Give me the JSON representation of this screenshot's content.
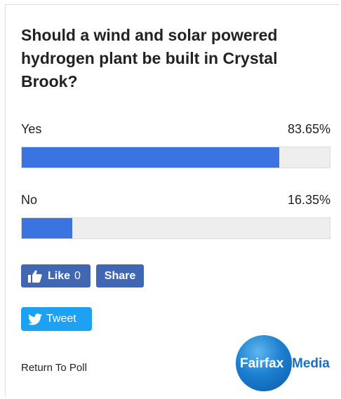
{
  "poll": {
    "question": "Should a wind and solar powered hydrogen plant be built in Crystal Brook?",
    "options": [
      {
        "label": "Yes",
        "percent_label": "83.65%",
        "percent": 83.65
      },
      {
        "label": "No",
        "percent_label": "16.35%",
        "percent": 16.35
      }
    ],
    "bar_color": "#3b73e0"
  },
  "social": {
    "like_label": "Like",
    "like_count": "0",
    "share_label": "Share",
    "tweet_label": "Tweet",
    "icons": {
      "like": "thumbs-up-icon",
      "tweet": "twitter-bird-icon"
    },
    "facebook_color": "#4267b2",
    "twitter_color": "#1da1f2"
  },
  "footer": {
    "return_label": "Return To Poll",
    "logo_word1": "Fairfax",
    "logo_word2": "Media"
  }
}
